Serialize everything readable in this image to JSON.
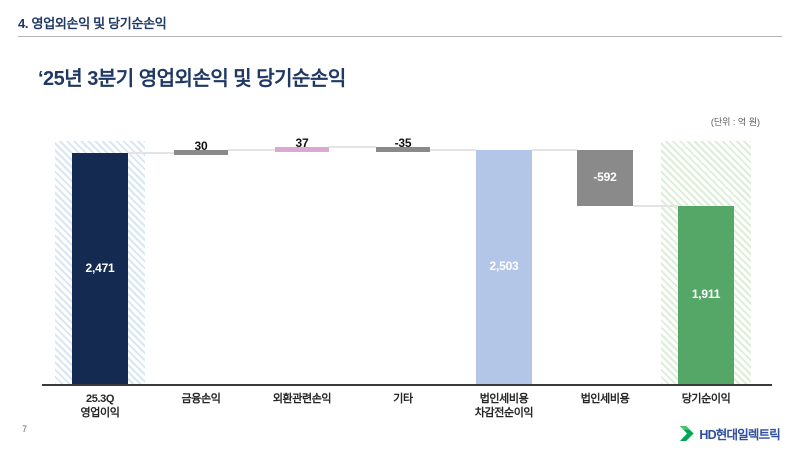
{
  "page": {
    "number": "7"
  },
  "header": {
    "section_title": "4. 영업외손익 및 당기순손익"
  },
  "title": "‘25년 3분기 영업외손익 및 당기순손익",
  "unit_label": "(단위 : 억 원)",
  "footer": {
    "logo_text": "HD현대일렉트릭"
  },
  "colors": {
    "title_navy": "#1f3864",
    "bar_navy": "#152a51",
    "bar_gray": "#8a8a8a",
    "bar_pink": "#d9a9d4",
    "bar_light_blue": "#b4c6e7",
    "bar_green": "#55a768",
    "hatch_blue_stripe": "#d9e6f4",
    "hatch_green_stripe": "#dcedd8",
    "connector_gray": "#e4e4e4",
    "axis_dark": "#3a3a3a",
    "logo_green": "#00a651",
    "logo_blue": "#2f4f9f"
  },
  "chart_data": {
    "type": "bar",
    "subtype": "waterfall",
    "title": "‘25년 3분기 영업외손익 및 당기순손익",
    "xlabel": "",
    "ylabel": "억 원",
    "ylim": [
      0,
      2650
    ],
    "grid": false,
    "legend": false,
    "categories": [
      "25.3Q 영업이익",
      "금융손익",
      "외환관련손익",
      "기타",
      "법인세비용 차감전순이익",
      "법인세비용",
      "당기순이익"
    ],
    "series": [
      {
        "name": "영업외손익 및 당기순손익",
        "values": [
          2471,
          30,
          37,
          -35,
          2503,
          -592,
          1911
        ]
      }
    ],
    "bars": [
      {
        "label_lines": [
          "25.3Q",
          "영업이익"
        ],
        "value": 2471,
        "display": "2,471",
        "kind": "total",
        "color": "#152a51",
        "value_color": "#ffffff",
        "hatch": "#d9e6f4"
      },
      {
        "label_lines": [
          "금융손익"
        ],
        "value": 30,
        "display": "30",
        "kind": "delta_small",
        "color": "#8a8a8a",
        "value_color": "#111111"
      },
      {
        "label_lines": [
          "외환관련손익"
        ],
        "value": 37,
        "display": "37",
        "kind": "delta_small",
        "color": "#d9a9d4",
        "value_color": "#111111"
      },
      {
        "label_lines": [
          "기타"
        ],
        "value": -35,
        "display": "-35",
        "kind": "delta_small",
        "color": "#8a8a8a",
        "value_color": "#111111"
      },
      {
        "label_lines": [
          "법인세비용",
          "차감전순이익"
        ],
        "value": 2503,
        "display": "2,503",
        "kind": "total",
        "color": "#b4c6e7",
        "value_color": "#ffffff"
      },
      {
        "label_lines": [
          "법인세비용"
        ],
        "value": -592,
        "display": "-592",
        "kind": "delta",
        "color": "#8a8a8a",
        "value_color": "#ffffff"
      },
      {
        "label_lines": [
          "당기순이익"
        ],
        "value": 1911,
        "display": "1,911",
        "kind": "total",
        "color": "#55a768",
        "value_color": "#ffffff",
        "hatch": "#dcedd8"
      }
    ]
  }
}
